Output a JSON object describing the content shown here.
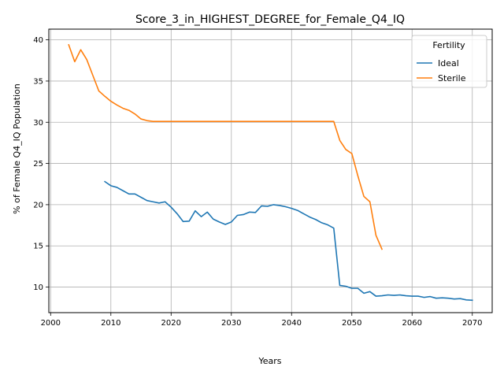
{
  "chart_data": {
    "type": "line",
    "title": "Score_3_in_HIGHEST_DEGREE_for_Female_Q4_IQ",
    "xlabel": "Years",
    "ylabel": "% of Female Q4_IQ Population",
    "xlim": [
      1999.7,
      2073.3
    ],
    "ylim": [
      6.9,
      41.3
    ],
    "xticks": [
      2000,
      2010,
      2020,
      2030,
      2040,
      2050,
      2060,
      2070
    ],
    "yticks": [
      10,
      15,
      20,
      25,
      30,
      35,
      40
    ],
    "grid": true,
    "legend": {
      "title": "Fertility",
      "position": "top-right"
    },
    "series": [
      {
        "name": "Ideal",
        "color": "#1f77b4",
        "x": [
          2009,
          2010,
          2011,
          2012,
          2013,
          2014,
          2015,
          2016,
          2017,
          2018,
          2019,
          2020,
          2021,
          2022,
          2023,
          2024,
          2025,
          2026,
          2027,
          2028,
          2029,
          2030,
          2031,
          2032,
          2033,
          2034,
          2035,
          2036,
          2037,
          2038,
          2039,
          2040,
          2041,
          2042,
          2043,
          2044,
          2045,
          2046,
          2047,
          2048,
          2049,
          2050,
          2051,
          2052,
          2053,
          2054,
          2055,
          2056,
          2057,
          2058,
          2059,
          2060,
          2061,
          2062,
          2063,
          2064,
          2065,
          2066,
          2067,
          2068,
          2069,
          2070
        ],
        "y": [
          22.8,
          22.3,
          22.1,
          21.7,
          21.3,
          21.3,
          20.9,
          20.5,
          20.35,
          20.2,
          20.35,
          19.7,
          18.9,
          17.95,
          18.0,
          19.25,
          18.55,
          19.1,
          18.25,
          17.9,
          17.6,
          17.9,
          18.7,
          18.8,
          19.1,
          19.05,
          19.85,
          19.8,
          20.0,
          19.9,
          19.75,
          19.55,
          19.3,
          18.9,
          18.5,
          18.2,
          17.8,
          17.55,
          17.15,
          10.2,
          10.1,
          9.85,
          9.85,
          9.25,
          9.45,
          8.9,
          8.95,
          9.05,
          9.0,
          9.05,
          8.95,
          8.9,
          8.9,
          8.75,
          8.85,
          8.65,
          8.7,
          8.65,
          8.55,
          8.6,
          8.45,
          8.4
        ]
      },
      {
        "name": "Sterile",
        "color": "#ff7f0e",
        "x": [
          2003,
          2004,
          2005,
          2006,
          2007,
          2008,
          2009,
          2010,
          2011,
          2012,
          2013,
          2014,
          2015,
          2016,
          2017,
          2018,
          2019,
          2020,
          2021,
          2022,
          2023,
          2024,
          2025,
          2026,
          2027,
          2028,
          2029,
          2030,
          2031,
          2032,
          2033,
          2034,
          2035,
          2036,
          2037,
          2038,
          2039,
          2040,
          2041,
          2042,
          2043,
          2044,
          2045,
          2046,
          2047,
          2048,
          2049,
          2050,
          2051,
          2052,
          2053,
          2054,
          2055
        ],
        "y": [
          39.4,
          37.35,
          38.8,
          37.6,
          35.7,
          33.8,
          33.15,
          32.55,
          32.1,
          31.7,
          31.45,
          31.0,
          30.4,
          30.2,
          30.1,
          30.1,
          30.1,
          30.1,
          30.1,
          30.1,
          30.1,
          30.1,
          30.1,
          30.1,
          30.1,
          30.1,
          30.1,
          30.1,
          30.1,
          30.1,
          30.1,
          30.1,
          30.1,
          30.1,
          30.1,
          30.1,
          30.1,
          30.1,
          30.1,
          30.1,
          30.1,
          30.1,
          30.1,
          30.1,
          30.1,
          27.8,
          26.7,
          26.2,
          23.5,
          21.0,
          20.35,
          16.3,
          14.6
        ]
      }
    ]
  }
}
